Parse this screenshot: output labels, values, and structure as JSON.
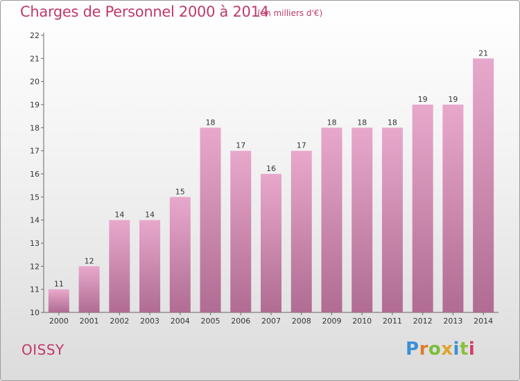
{
  "title": "Charges de Personnel 2000 à 2014",
  "subtitle": "(en milliers d'€)",
  "city": "OISSY",
  "logo_text": "Proxiti",
  "colors": {
    "accent": "#c0396b",
    "bar_top": "#e8a8cc",
    "bar_bottom": "#b06c92",
    "logo": [
      "#3a8fd4",
      "#e07b2a",
      "#7bbd3b",
      "#e0a32a",
      "#3a8fd4",
      "#8bbf3b",
      "#d63a6a"
    ]
  },
  "chart_data": {
    "type": "bar",
    "title": "Charges de Personnel 2000 à 2014",
    "subtitle": "(en milliers d'€)",
    "categories": [
      "2000",
      "2001",
      "2002",
      "2003",
      "2004",
      "2005",
      "2006",
      "2007",
      "2008",
      "2009",
      "2010",
      "2011",
      "2012",
      "2013",
      "2014"
    ],
    "values": [
      11,
      12,
      14,
      14,
      15,
      18,
      17,
      16,
      17,
      18,
      18,
      18,
      19,
      19,
      21
    ],
    "ylim": [
      10,
      22
    ],
    "yticks": [
      10,
      11,
      12,
      13,
      14,
      15,
      16,
      17,
      18,
      19,
      20,
      21,
      22
    ],
    "xlabel": "",
    "ylabel": "",
    "grid": false,
    "data_labels": true
  }
}
